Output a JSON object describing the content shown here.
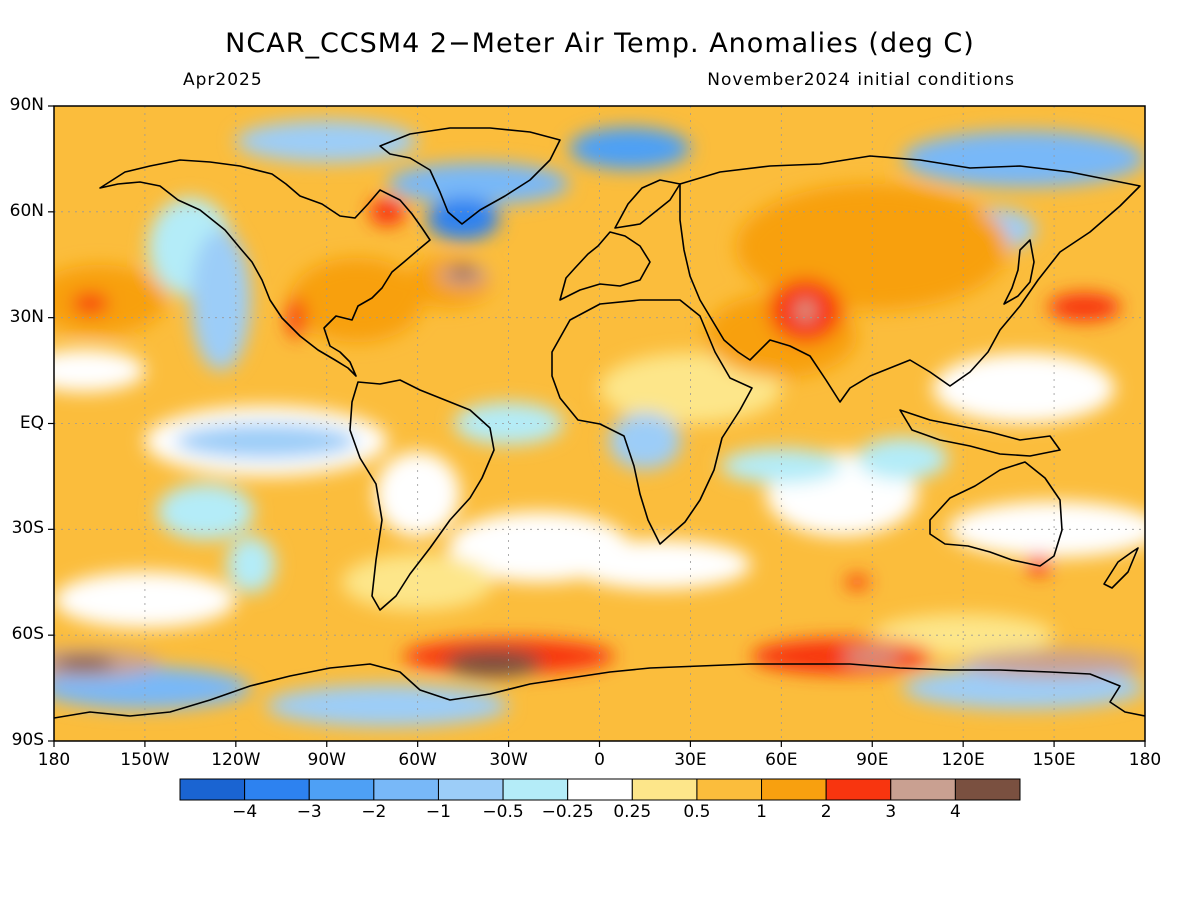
{
  "title": "NCAR_CCSM4 2−Meter Air Temp. Anomalies (deg C)",
  "valid_month": "Apr2025",
  "initial_conditions": "November2024 initial conditions",
  "lat_labels": [
    "90N",
    "60N",
    "30N",
    "EQ",
    "30S",
    "60S",
    "90S"
  ],
  "lon_labels": [
    "180",
    "150W",
    "120W",
    "90W",
    "60W",
    "30W",
    "0",
    "30E",
    "60E",
    "90E",
    "120E",
    "150E",
    "180"
  ],
  "colorbar": {
    "labels": [
      "−4",
      "−3",
      "−2",
      "−1",
      "−0.5",
      "−0.25",
      "0.25",
      "0.5",
      "1",
      "2",
      "3",
      "4"
    ],
    "colors": [
      "#1a64d2",
      "#2d82f0",
      "#4ea0f5",
      "#78b8f8",
      "#9ccdf8",
      "#b4ecf8",
      "#ffffff",
      "#fde68a",
      "#fbbd3c",
      "#f8a00f",
      "#f8350f",
      "#c9a091",
      "#7a5040"
    ]
  },
  "anomaly_regions": [
    {
      "label": "North Pacific warm",
      "lon": -165,
      "lat": 35,
      "level": 9
    },
    {
      "label": "North Atlantic hot spot",
      "lon": -45,
      "lat": 42,
      "level": 11
    },
    {
      "label": "Iran / Central Asia hot",
      "lon": 65,
      "lat": 32,
      "level": 10
    },
    {
      "label": "Greenland Sea cold",
      "lon": -45,
      "lat": 60,
      "level": 2
    },
    {
      "label": "Weddell Sea warm",
      "lon": -30,
      "lat": -68,
      "level": 12
    },
    {
      "label": "Ross Sea warm",
      "lon": -170,
      "lat": -68,
      "level": 12
    },
    {
      "label": "Tropical Pacific cool",
      "lon": -120,
      "lat": 0,
      "level": 3
    }
  ]
}
